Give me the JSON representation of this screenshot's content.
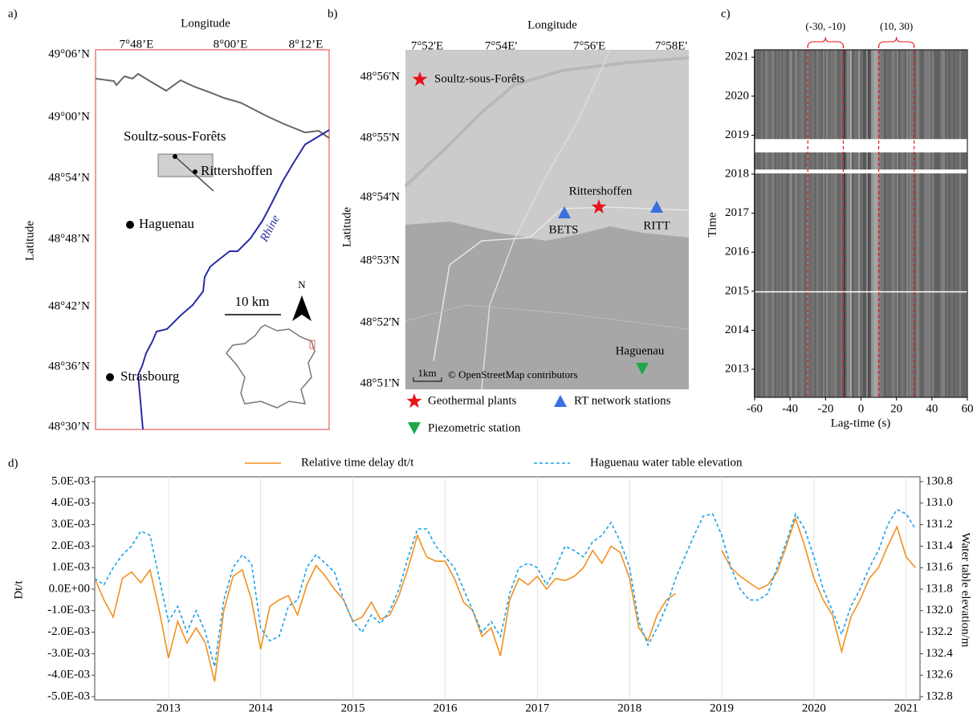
{
  "panel_labels": [
    "a)",
    "b)",
    "c)",
    "d)"
  ],
  "map_a": {
    "x_label": "Longitude",
    "y_label": "Latitude",
    "lon_ticks": [
      "7°48’E",
      "8°00’E",
      "8°12’E"
    ],
    "lat_ticks": [
      "49°06’N",
      "49°00’N",
      "48°54’N",
      "48°48’N",
      "48°42’N",
      "48°36’N",
      "48°30’N"
    ],
    "places": [
      "Soultz-sous-Forêts",
      "Rittershoffen",
      "Haguenau",
      "Strasbourg"
    ],
    "river": "Rhine",
    "scale": "10 km",
    "north": "N"
  },
  "map_b": {
    "x_label": "Longitude",
    "y_label": "Latitude",
    "lon_ticks": [
      "7°52'E",
      "7°54E'",
      "7°56'E",
      "7°58E'"
    ],
    "lat_ticks": [
      "48°56'N",
      "48°55'N",
      "48°54'N",
      "48°53'N",
      "48°52'N",
      "48°51'N"
    ],
    "places": [
      "Soultz-sous-Forêts",
      "Rittershoffen",
      "BETS",
      "RITT",
      "Haguenau"
    ],
    "scale": "1km",
    "credit": "© OpenStreetMap contributors",
    "legend": [
      "Geothermal plants",
      "RT network stations",
      "Piezometric station"
    ]
  },
  "chart_data": [
    {
      "type": "correlogram",
      "x_label": "Lag-time (s)",
      "y_label": "Time",
      "xlim": [
        -60,
        60
      ],
      "xticks": [
        -60,
        -40,
        -20,
        0,
        20,
        40,
        60
      ],
      "ylim": [
        2012.28,
        2021.19
      ],
      "yticks": [
        2013,
        2014,
        2015,
        2016,
        2017,
        2018,
        2019,
        2020,
        2021
      ],
      "windows": [
        {
          "label": "(-30, -10)",
          "range": [
            -30,
            -10
          ]
        },
        {
          "label": "(10, 30)",
          "range": [
            10,
            30
          ]
        }
      ],
      "gaps": [
        [
          2018.56,
          2018.9
        ],
        [
          2018.02,
          2018.12
        ],
        [
          2014.98,
          2015.0
        ]
      ]
    },
    {
      "type": "line",
      "y_label": "Dt/t",
      "y2_label": "Water table elevation/m",
      "legend": "top",
      "grid": "x",
      "xlim": [
        2012.2,
        2021.15
      ],
      "xticks": [
        2013,
        2014,
        2015,
        2016,
        2017,
        2018,
        2019,
        2020,
        2021
      ],
      "ylim": [
        -0.005,
        0.005
      ],
      "yticks": [
        {
          "value": 0.005,
          "label": "5.0E-03"
        },
        {
          "value": 0.004,
          "label": "4.0E-03"
        },
        {
          "value": 0.003,
          "label": "3.0E-03"
        },
        {
          "value": 0.002,
          "label": "2.0E-03"
        },
        {
          "value": 0.001,
          "label": "1.0E-03"
        },
        {
          "value": 0,
          "label": "0.0E+00"
        },
        {
          "value": -0.001,
          "label": "-1.0E-03"
        },
        {
          "value": -0.002,
          "label": "-2.0E-03"
        },
        {
          "value": -0.003,
          "label": "-3.0E-03"
        },
        {
          "value": -0.004,
          "label": "-4.0E-03"
        },
        {
          "value": -0.005,
          "label": "-5.0E-03"
        }
      ],
      "y2lim": [
        132.8,
        130.8
      ],
      "y2ticks": [
        130.8,
        {
          "value": 131,
          "label": "131.0"
        },
        131.2,
        131.4,
        131.6,
        131.8,
        {
          "value": 132,
          "label": "132.0"
        },
        132.2,
        132.4,
        132.6,
        132.8
      ],
      "x": [
        2012.2,
        2012.3,
        2012.4,
        2012.5,
        2012.6,
        2012.7,
        2012.8,
        2012.9,
        2013.0,
        2013.1,
        2013.2,
        2013.3,
        2013.4,
        2013.5,
        2013.6,
        2013.7,
        2013.8,
        2013.9,
        2014.0,
        2014.1,
        2014.2,
        2014.3,
        2014.4,
        2014.5,
        2014.6,
        2014.7,
        2014.8,
        2014.9,
        2015.0,
        2015.1,
        2015.2,
        2015.3,
        2015.4,
        2015.5,
        2015.6,
        2015.7,
        2015.8,
        2015.9,
        2016.0,
        2016.1,
        2016.2,
        2016.3,
        2016.4,
        2016.5,
        2016.6,
        2016.7,
        2016.8,
        2016.9,
        2017.0,
        2017.1,
        2017.2,
        2017.3,
        2017.4,
        2017.5,
        2017.6,
        2017.7,
        2017.8,
        2017.9,
        2018.0,
        2018.1,
        2018.2,
        2018.3,
        2018.4,
        2018.5,
        2018.6,
        2018.7,
        2018.8,
        2018.9,
        2019.0,
        2019.1,
        2019.2,
        2019.3,
        2019.4,
        2019.5,
        2019.6,
        2019.7,
        2019.8,
        2019.9,
        2020.0,
        2020.1,
        2020.2,
        2020.3,
        2020.4,
        2020.5,
        2020.6,
        2020.7,
        2020.8,
        2020.9,
        2021.0,
        2021.1
      ],
      "series": [
        {
          "name": "Relative time delay dt/t",
          "color": "#f2901e",
          "dash": false,
          "values": [
            0.0005,
            -0.0005,
            -0.0013,
            0.0005,
            0.0008,
            0.0003,
            0.0009,
            -0.001,
            -0.0032,
            -0.0015,
            -0.0025,
            -0.0018,
            -0.0025,
            -0.0043,
            -0.001,
            0.0006,
            0.0009,
            -0.0005,
            -0.0028,
            -0.0008,
            -0.0005,
            -0.0003,
            -0.0012,
            0.0002,
            0.0011,
            0.0006,
            0,
            -0.0005,
            -0.0015,
            -0.0013,
            -0.0006,
            -0.0014,
            -0.0012,
            -0.0003,
            0.001,
            0.0025,
            0.0015,
            0.0013,
            0.0013,
            0.0005,
            -0.0006,
            -0.001,
            -0.0022,
            -0.0018,
            -0.0031,
            -0.0005,
            0.0005,
            0.0002,
            0.0006,
            0,
            0.0005,
            0.0004,
            0.0006,
            0.001,
            0.0018,
            0.0012,
            0.002,
            0.0017,
            0.0005,
            -0.0018,
            -0.0024,
            -0.0012,
            -0.0005,
            -0.0002,
            null,
            null,
            null,
            null,
            0.0018,
            0.001,
            0.0006,
            0.0003,
            0,
            0.0002,
            0.0008,
            0.002,
            0.0033,
            0.002,
            0.0005,
            -0.0005,
            -0.0012,
            -0.0029,
            -0.0013,
            -0.0005,
            0.0005,
            0.001,
            0.002,
            0.0029,
            0.0015,
            0.001
          ]
        },
        {
          "name": "Haguenau water table elevation",
          "color": "#1aa3e8",
          "dash": true,
          "axis": "y2",
          "values": [
            131.7,
            131.76,
            131.6,
            131.48,
            131.4,
            131.26,
            131.3,
            131.7,
            132.1,
            131.96,
            132.2,
            132.0,
            132.2,
            132.52,
            131.9,
            131.6,
            131.48,
            131.56,
            132.16,
            132.28,
            132.24,
            131.96,
            131.9,
            131.6,
            131.48,
            131.56,
            131.64,
            131.9,
            132.1,
            132.2,
            132.04,
            132.12,
            132.0,
            131.8,
            131.5,
            131.24,
            131.24,
            131.4,
            131.5,
            131.6,
            131.8,
            132.0,
            132.2,
            132.1,
            132.24,
            131.84,
            131.6,
            131.56,
            131.6,
            131.76,
            131.6,
            131.4,
            131.44,
            131.5,
            131.36,
            131.3,
            131.18,
            131.36,
            131.6,
            132.1,
            132.32,
            132.16,
            131.96,
            131.7,
            131.5,
            131.3,
            131.12,
            131.1,
            131.3,
            131.6,
            131.8,
            131.9,
            131.9,
            131.84,
            131.6,
            131.36,
            131.1,
            131.24,
            131.5,
            131.8,
            132.0,
            132.22,
            131.96,
            131.8,
            131.6,
            131.44,
            131.2,
            131.06,
            131.1,
            131.24
          ]
        }
      ]
    }
  ]
}
